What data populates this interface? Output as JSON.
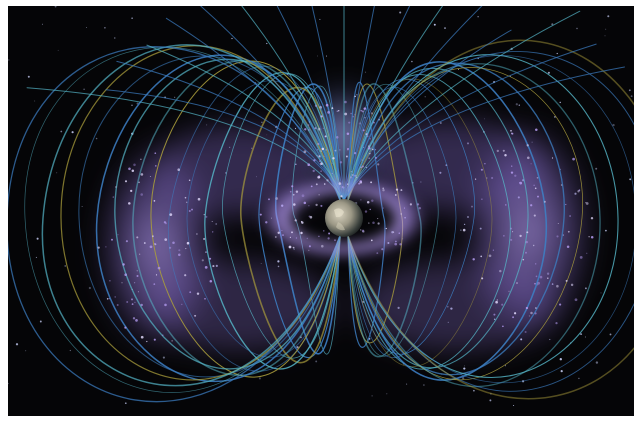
{
  "image": {
    "subject_icon": "earth-globe-icon",
    "colors": {
      "space": "#050507",
      "belt_purple": "#8a6fd1",
      "belt_glow": "#b49cf0",
      "field_blue": "#3d7fc4",
      "field_cyan": "#56b7c9",
      "field_yellow": "#a99c3c",
      "earth_light": "#c9c2ad",
      "earth_dark": "#1c2222"
    }
  }
}
